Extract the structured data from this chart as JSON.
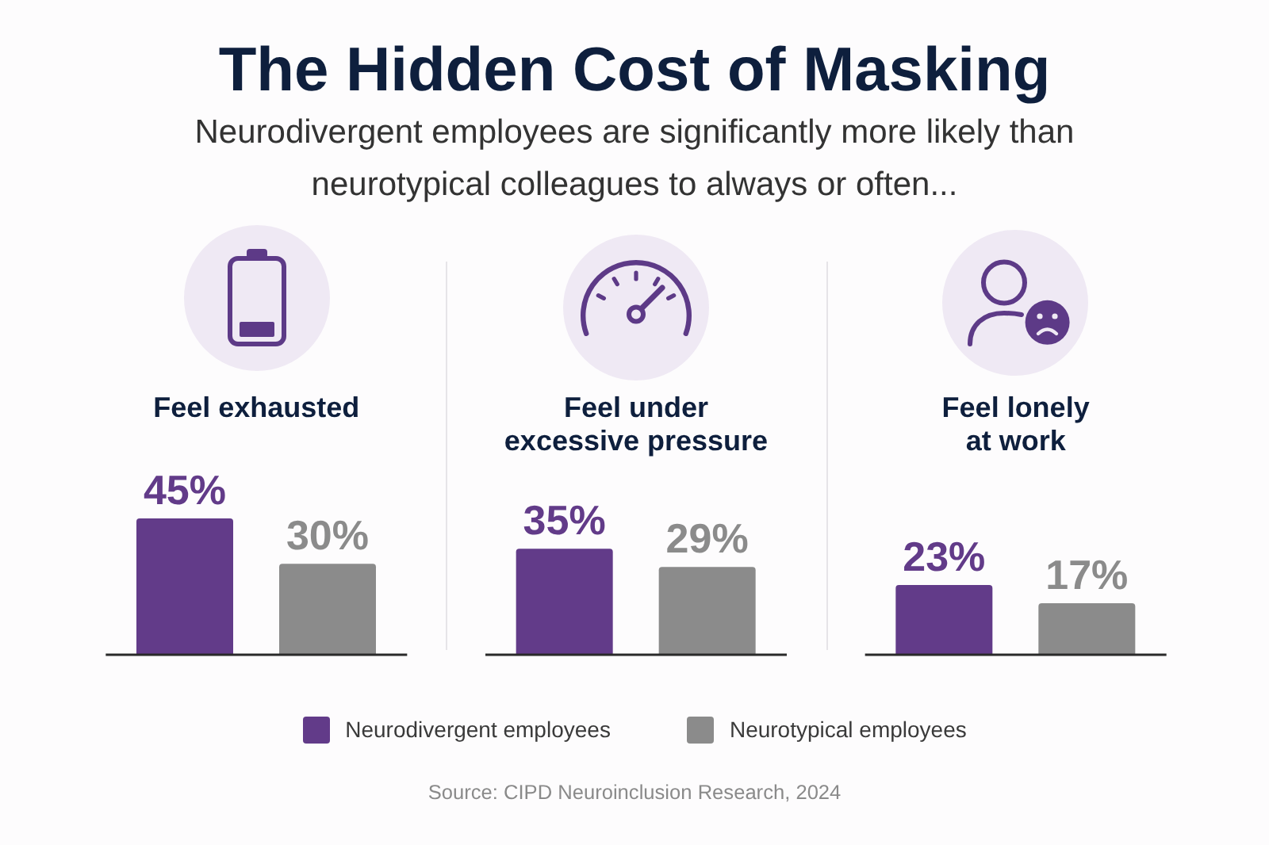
{
  "chart_data": {
    "type": "bar",
    "title": "The Hidden Cost of Masking",
    "subtitle": "Neurodivergent employees are significantly more likely than neurotypical colleagues to always or often...",
    "categories": [
      "Feel exhausted",
      "Feel under excessive pressure",
      "Feel lonely at work"
    ],
    "series": [
      {
        "name": "Neurodivergent employees",
        "color": "#623b89",
        "values": [
          45,
          35,
          23
        ],
        "value_labels": [
          "45%",
          "35%",
          "23%"
        ]
      },
      {
        "name": "Neurotypical employees",
        "color": "#8b8b8b",
        "values": [
          30,
          29,
          17
        ],
        "value_labels": [
          "30%",
          "29%",
          "17%"
        ]
      }
    ],
    "grid": "x",
    "legend": "bottom",
    "annotations": [
      "Source: CIPD Neuroinclusion Research, 2024"
    ]
  }
}
